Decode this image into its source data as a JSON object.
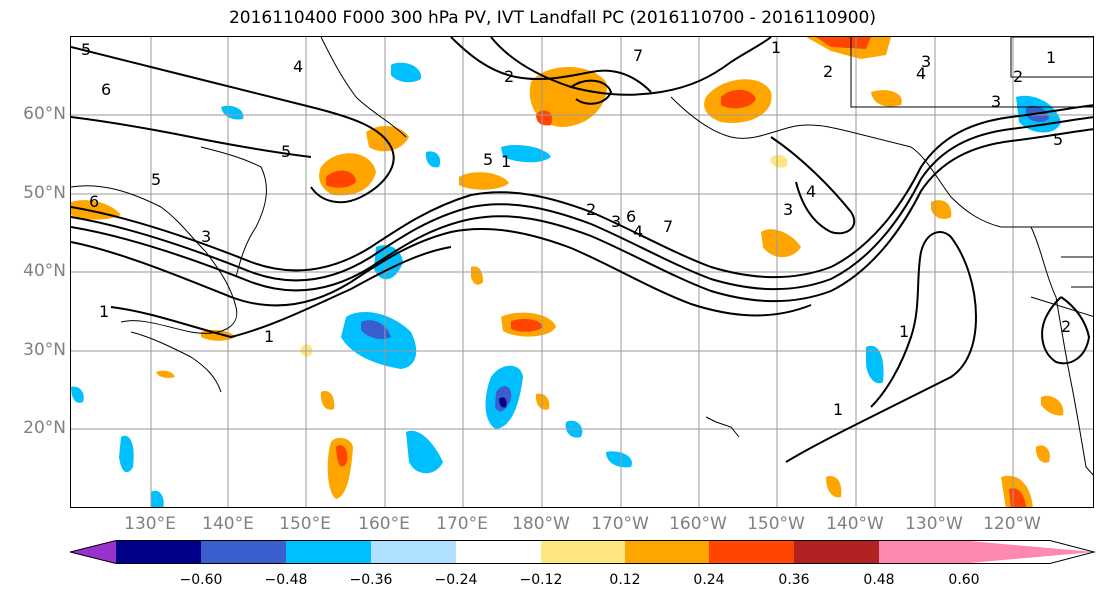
{
  "title": "2016110400 F000 300 hPa PV, IVT Landfall PC (2016110700 - 2016110900)",
  "lat_labels": [
    "60°N",
    "50°N",
    "40°N",
    "30°N",
    "20°N"
  ],
  "lon_labels": [
    "130°E",
    "140°E",
    "150°E",
    "160°E",
    "170°E",
    "180°W",
    "170°W",
    "160°W",
    "150°W",
    "140°W",
    "130°W",
    "120°W"
  ],
  "colorbar": {
    "ticks": [
      "−0.60",
      "−0.48",
      "−0.36",
      "−0.24",
      "−0.12",
      "0.12",
      "0.24",
      "0.36",
      "0.48",
      "0.60"
    ],
    "colors": [
      "#9932cc",
      "#00008b",
      "#3a5fcd",
      "#00bfff",
      "#b0e0ff",
      "#ffffff",
      "#ffe680",
      "#ffa500",
      "#ff4500",
      "#b22222",
      "#ff88b0"
    ]
  },
  "contour_labels": [
    "5",
    "4",
    "6",
    "5",
    "6",
    "3",
    "1",
    "1",
    "2",
    "1",
    "7",
    "1",
    "2",
    "3",
    "4",
    "5",
    "6",
    "7",
    "5",
    "4",
    "3",
    "2",
    "1",
    "1",
    "3",
    "2",
    "1",
    "5",
    "4",
    "3",
    "2"
  ]
}
